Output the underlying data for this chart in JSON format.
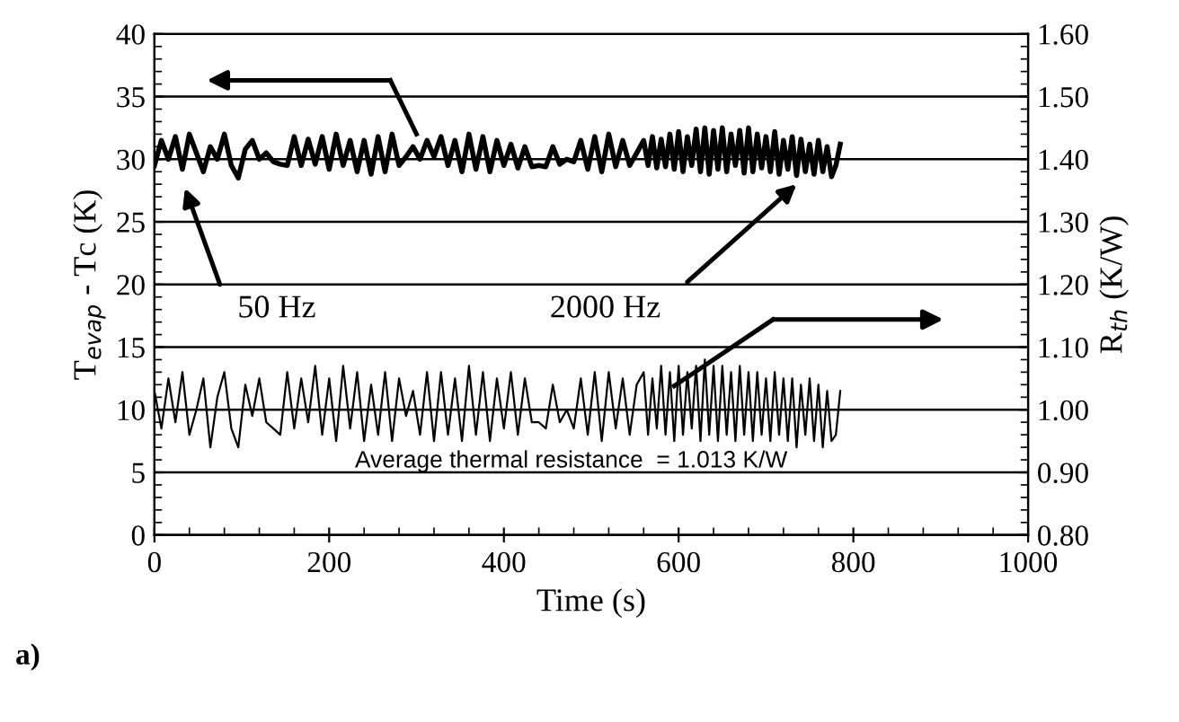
{
  "chart_data": {
    "type": "line",
    "xlabel": "Time (s)",
    "ylabel": "T$_{evap}$ - Tc (K)",
    "y2label": "R$_{th}$ (K/W)",
    "xlim": [
      0,
      1000
    ],
    "xticks": [
      0,
      200,
      400,
      600,
      800,
      1000
    ],
    "ylim": [
      0,
      40
    ],
    "yticks": [
      0,
      5,
      10,
      15,
      20,
      25,
      30,
      35,
      40
    ],
    "y2lim": [
      0.8,
      1.6
    ],
    "y2ticks": [
      {
        "value": 0.8,
        "label": "0.80"
      },
      {
        "value": 0.9,
        "label": "0.90"
      },
      {
        "value": 1.0,
        "label": "1.00"
      },
      {
        "value": 1.1,
        "label": "1.10"
      },
      {
        "value": 1.2,
        "label": "1.20"
      },
      {
        "value": 1.3,
        "label": "1.30"
      },
      {
        "value": 1.4,
        "label": "1.40"
      },
      {
        "value": 1.5,
        "label": "1.50"
      },
      {
        "value": 1.6,
        "label": "1.60"
      }
    ],
    "grid": "y",
    "legend": false,
    "marker": "none",
    "line_style": "solid",
    "annotations": [
      "50 Hz",
      "2000 Hz",
      "Average thermal resistance  = 1.013 K/W",
      "a)"
    ],
    "series": [
      {
        "color": "#000000",
        "x": [
          0,
          8,
          16,
          24,
          32,
          40,
          48,
          56,
          64,
          72,
          80,
          88,
          96,
          104,
          112,
          120,
          128,
          136,
          144,
          152,
          160,
          168,
          176,
          184,
          192,
          200,
          208,
          216,
          224,
          232,
          240,
          248,
          256,
          264,
          272,
          280,
          288,
          296,
          304,
          312,
          320,
          328,
          336,
          344,
          352,
          360,
          368,
          376,
          384,
          392,
          400,
          408,
          416,
          424,
          432,
          440,
          448,
          456,
          464,
          472,
          480,
          488,
          496,
          504,
          512,
          520,
          528,
          536,
          544,
          552,
          560,
          565,
          570,
          575,
          580,
          585,
          590,
          595,
          600,
          605,
          610,
          615,
          620,
          625,
          630,
          635,
          640,
          645,
          650,
          655,
          660,
          665,
          670,
          675,
          680,
          685,
          690,
          695,
          700,
          705,
          710,
          715,
          720,
          725,
          730,
          735,
          740,
          745,
          750,
          755,
          760,
          765,
          770,
          775,
          780,
          785
        ],
        "values": [
          29.5,
          31.5,
          30,
          31.8,
          29.2,
          32,
          30.5,
          29,
          31,
          30,
          32,
          29.5,
          28.5,
          30.8,
          31.5,
          30,
          30.5,
          29.8,
          29.6,
          29.5,
          31.8,
          29.5,
          31.6,
          29.6,
          31.8,
          29.2,
          32,
          29.5,
          31.5,
          29,
          31.5,
          28.8,
          31.8,
          29,
          32,
          29.5,
          30.2,
          31,
          30,
          31.5,
          30.2,
          31.8,
          29.5,
          31.5,
          29,
          32,
          29.2,
          31.8,
          29,
          31.5,
          29.5,
          31.2,
          29.3,
          31,
          29.4,
          29.5,
          29.4,
          31,
          29.6,
          30,
          29.8,
          31.5,
          29.2,
          31.8,
          29,
          32,
          29.4,
          31.5,
          29.5,
          30.5,
          31.5,
          29.5,
          31.8,
          29.3,
          31.6,
          29.4,
          32,
          29.2,
          32.2,
          29,
          31.8,
          29.5,
          32.4,
          29,
          32.5,
          28.8,
          32.3,
          29.2,
          32.5,
          29,
          32,
          29.5,
          32.3,
          28.9,
          32.5,
          29,
          32,
          29.3,
          31.8,
          29,
          32.2,
          28.8,
          31.5,
          29.2,
          31.8,
          28.7,
          31.6,
          29,
          31.2,
          28.8,
          31.5,
          29,
          31,
          28.6,
          29.5,
          31.2
        ]
      },
      {
        "color": "#000000",
        "axis": "y2",
        "x": [
          0,
          8,
          16,
          24,
          32,
          40,
          48,
          56,
          64,
          72,
          80,
          88,
          96,
          104,
          112,
          120,
          128,
          136,
          144,
          152,
          160,
          168,
          176,
          184,
          192,
          200,
          208,
          216,
          224,
          232,
          240,
          248,
          256,
          264,
          272,
          280,
          288,
          296,
          304,
          312,
          320,
          328,
          336,
          344,
          352,
          360,
          368,
          376,
          384,
          392,
          400,
          408,
          416,
          424,
          432,
          440,
          448,
          456,
          464,
          472,
          480,
          488,
          496,
          504,
          512,
          520,
          528,
          536,
          544,
          552,
          560,
          565,
          570,
          575,
          580,
          585,
          590,
          595,
          600,
          605,
          610,
          615,
          620,
          625,
          630,
          635,
          640,
          645,
          650,
          655,
          660,
          665,
          670,
          675,
          680,
          685,
          690,
          695,
          700,
          705,
          710,
          715,
          720,
          725,
          730,
          735,
          740,
          745,
          750,
          755,
          760,
          765,
          770,
          775,
          780,
          785
        ],
        "values": [
          1.03,
          0.97,
          1.05,
          0.98,
          1.06,
          0.96,
          1.0,
          1.05,
          0.94,
          1.02,
          1.06,
          0.97,
          0.94,
          1.04,
          0.99,
          1.05,
          0.98,
          0.97,
          0.96,
          1.06,
          0.97,
          1.05,
          0.98,
          1.07,
          0.96,
          1.05,
          0.95,
          1.07,
          0.97,
          1.06,
          0.95,
          1.04,
          0.96,
          1.06,
          0.95,
          1.05,
          0.99,
          1.03,
          0.96,
          1.06,
          0.95,
          1.06,
          0.96,
          1.05,
          0.95,
          1.07,
          0.96,
          1.06,
          0.95,
          1.05,
          0.97,
          1.06,
          0.96,
          1.05,
          0.98,
          0.98,
          0.97,
          1.04,
          0.98,
          1.0,
          0.97,
          1.05,
          0.96,
          1.06,
          0.95,
          1.06,
          0.97,
          1.05,
          0.96,
          1.04,
          1.06,
          0.96,
          1.05,
          0.97,
          1.07,
          0.96,
          1.06,
          0.95,
          1.07,
          0.96,
          1.06,
          0.97,
          1.07,
          0.95,
          1.08,
          0.96,
          1.07,
          0.95,
          1.07,
          0.96,
          1.06,
          0.95,
          1.07,
          0.96,
          1.06,
          0.95,
          1.06,
          0.96,
          1.05,
          0.95,
          1.06,
          0.96,
          1.05,
          0.95,
          1.05,
          0.94,
          1.04,
          0.96,
          1.05,
          0.95,
          1.04,
          0.94,
          1.03,
          0.95,
          0.96,
          1.03
        ]
      }
    ]
  }
}
